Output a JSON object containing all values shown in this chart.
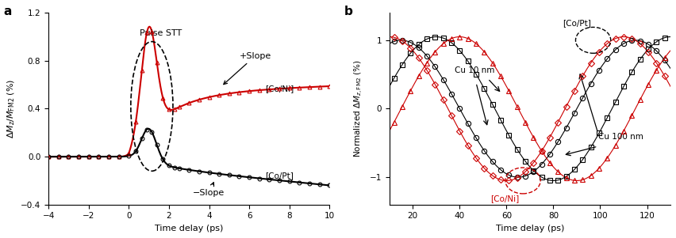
{
  "panel_a": {
    "title": "a",
    "xlabel": "Time delay (ps)",
    "xlim": [
      -4,
      10
    ],
    "ylim": [
      -0.4,
      1.2
    ],
    "xticks": [
      -4,
      -2,
      0,
      2,
      4,
      6,
      8,
      10
    ],
    "yticks": [
      -0.4,
      0.0,
      0.4,
      0.8,
      1.2
    ],
    "coni_color": "#cc0000",
    "copt_color": "#000000",
    "annotation_pulse": "Pulse STT",
    "annotation_plus": "+Slope",
    "annotation_minus": "−Slope",
    "label_coni": "[Co/Ni]",
    "label_copt": "[Co/Pt]"
  },
  "panel_b": {
    "title": "b",
    "xlabel": "Time delay (ps)",
    "xlim": [
      10,
      130
    ],
    "ylim": [
      -1.4,
      1.4
    ],
    "xticks": [
      20,
      40,
      60,
      80,
      100,
      120
    ],
    "yticks": [
      -1,
      0,
      1
    ],
    "label_copt": "[Co/Pt]",
    "label_coni": "[Co/Ni]",
    "label_cu10": "Cu 10 nm",
    "label_cu100": "Cu 100 nm",
    "coni_color": "#cc0000",
    "copt_color": "#000000"
  }
}
